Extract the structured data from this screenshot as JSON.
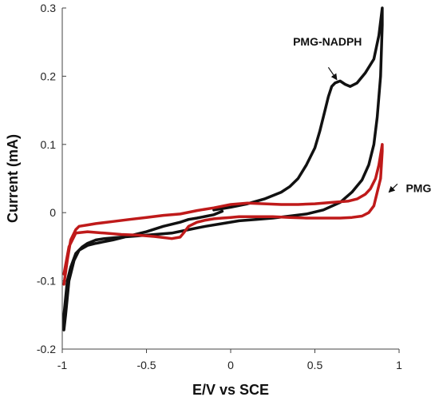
{
  "chart_data": {
    "type": "line",
    "xlabel": "E/V vs SCE",
    "ylabel": "Current (mA)",
    "xlim": [
      -1,
      1
    ],
    "ylim": [
      -0.2,
      0.3
    ],
    "grid": false,
    "x_ticks": [
      -1,
      -0.5,
      0,
      0.5,
      1
    ],
    "x_tick_labels": [
      "-1",
      "-0.5",
      "0",
      "0.5",
      "1"
    ],
    "y_ticks": [
      -0.2,
      -0.1,
      0,
      0.1,
      0.2,
      0.3
    ],
    "y_tick_labels": [
      "-0.2",
      "-0.1",
      "0",
      "0.1",
      "0.2",
      "0.3"
    ],
    "annotations": [
      {
        "text": "PMG-NADPH",
        "series": "PMG-NADPH",
        "text_at": [
          0.37,
          0.245
        ],
        "arrow_from": [
          0.58,
          0.213
        ],
        "arrow_to": [
          0.63,
          0.195
        ]
      },
      {
        "text": "PMG",
        "series": "PMG",
        "text_at": [
          1.04,
          0.03
        ],
        "arrow_from": [
          0.99,
          0.042
        ],
        "arrow_to": [
          0.94,
          0.03
        ]
      }
    ],
    "series": [
      {
        "name": "PMG-NADPH",
        "color": "#111111",
        "x": [
          -0.1,
          -0.05,
          0.0,
          0.1,
          0.2,
          0.3,
          0.35,
          0.4,
          0.45,
          0.5,
          0.53,
          0.56,
          0.58,
          0.6,
          0.62,
          0.65,
          0.68,
          0.71,
          0.75,
          0.8,
          0.85,
          0.88,
          0.9,
          0.9,
          0.89,
          0.87,
          0.85,
          0.82,
          0.78,
          0.72,
          0.65,
          0.55,
          0.45,
          0.35,
          0.25,
          0.15,
          0.05,
          -0.05,
          -0.15,
          -0.25,
          -0.35,
          -0.45,
          -0.55,
          -0.65,
          -0.75,
          -0.8,
          -0.85,
          -0.88,
          -0.92,
          -0.95,
          -0.97,
          -0.99,
          -0.99,
          -0.98,
          -0.96,
          -0.93,
          -0.9,
          -0.85,
          -0.8,
          -0.7,
          -0.6,
          -0.5,
          -0.4,
          -0.3,
          -0.25,
          -0.2,
          -0.1,
          -0.05
        ],
        "y": [
          0.004,
          0.006,
          0.008,
          0.013,
          0.02,
          0.03,
          0.038,
          0.05,
          0.07,
          0.095,
          0.12,
          0.15,
          0.17,
          0.185,
          0.19,
          0.193,
          0.188,
          0.185,
          0.19,
          0.205,
          0.225,
          0.26,
          0.3,
          0.275,
          0.2,
          0.14,
          0.1,
          0.07,
          0.048,
          0.03,
          0.015,
          0.004,
          -0.002,
          -0.005,
          -0.008,
          -0.01,
          -0.012,
          -0.016,
          -0.02,
          -0.025,
          -0.03,
          -0.032,
          -0.034,
          -0.036,
          -0.038,
          -0.04,
          -0.045,
          -0.05,
          -0.06,
          -0.08,
          -0.1,
          -0.15,
          -0.172,
          -0.15,
          -0.1,
          -0.07,
          -0.055,
          -0.048,
          -0.045,
          -0.04,
          -0.034,
          -0.028,
          -0.02,
          -0.014,
          -0.01,
          -0.008,
          -0.003,
          0.002
        ]
      },
      {
        "name": "PMG",
        "color": "#bf1a1a",
        "x": [
          -0.99,
          -0.97,
          -0.95,
          -0.92,
          -0.9,
          -0.85,
          -0.8,
          -0.7,
          -0.6,
          -0.5,
          -0.4,
          -0.3,
          -0.2,
          -0.1,
          0.0,
          0.05,
          0.1,
          0.2,
          0.3,
          0.4,
          0.5,
          0.6,
          0.7,
          0.75,
          0.8,
          0.83,
          0.86,
          0.88,
          0.9,
          0.9,
          0.89,
          0.87,
          0.85,
          0.82,
          0.78,
          0.72,
          0.65,
          0.55,
          0.45,
          0.35,
          0.25,
          0.15,
          0.1,
          0.05,
          0.0,
          -0.05,
          -0.1,
          -0.15,
          -0.2,
          -0.25,
          -0.28,
          -0.3,
          -0.35,
          -0.45,
          -0.55,
          -0.65,
          -0.75,
          -0.85,
          -0.92,
          -0.96,
          -0.99
        ],
        "y": [
          -0.105,
          -0.07,
          -0.04,
          -0.025,
          -0.02,
          -0.018,
          -0.016,
          -0.013,
          -0.01,
          -0.007,
          -0.004,
          -0.002,
          0.003,
          0.007,
          0.012,
          0.013,
          0.014,
          0.013,
          0.012,
          0.012,
          0.013,
          0.015,
          0.017,
          0.02,
          0.027,
          0.035,
          0.05,
          0.07,
          0.1,
          0.09,
          0.05,
          0.03,
          0.01,
          0.0,
          -0.005,
          -0.007,
          -0.008,
          -0.008,
          -0.008,
          -0.007,
          -0.006,
          -0.006,
          -0.006,
          -0.006,
          -0.007,
          -0.008,
          -0.009,
          -0.011,
          -0.014,
          -0.02,
          -0.03,
          -0.036,
          -0.038,
          -0.035,
          -0.033,
          -0.032,
          -0.03,
          -0.028,
          -0.03,
          -0.05,
          -0.09
        ]
      }
    ]
  }
}
